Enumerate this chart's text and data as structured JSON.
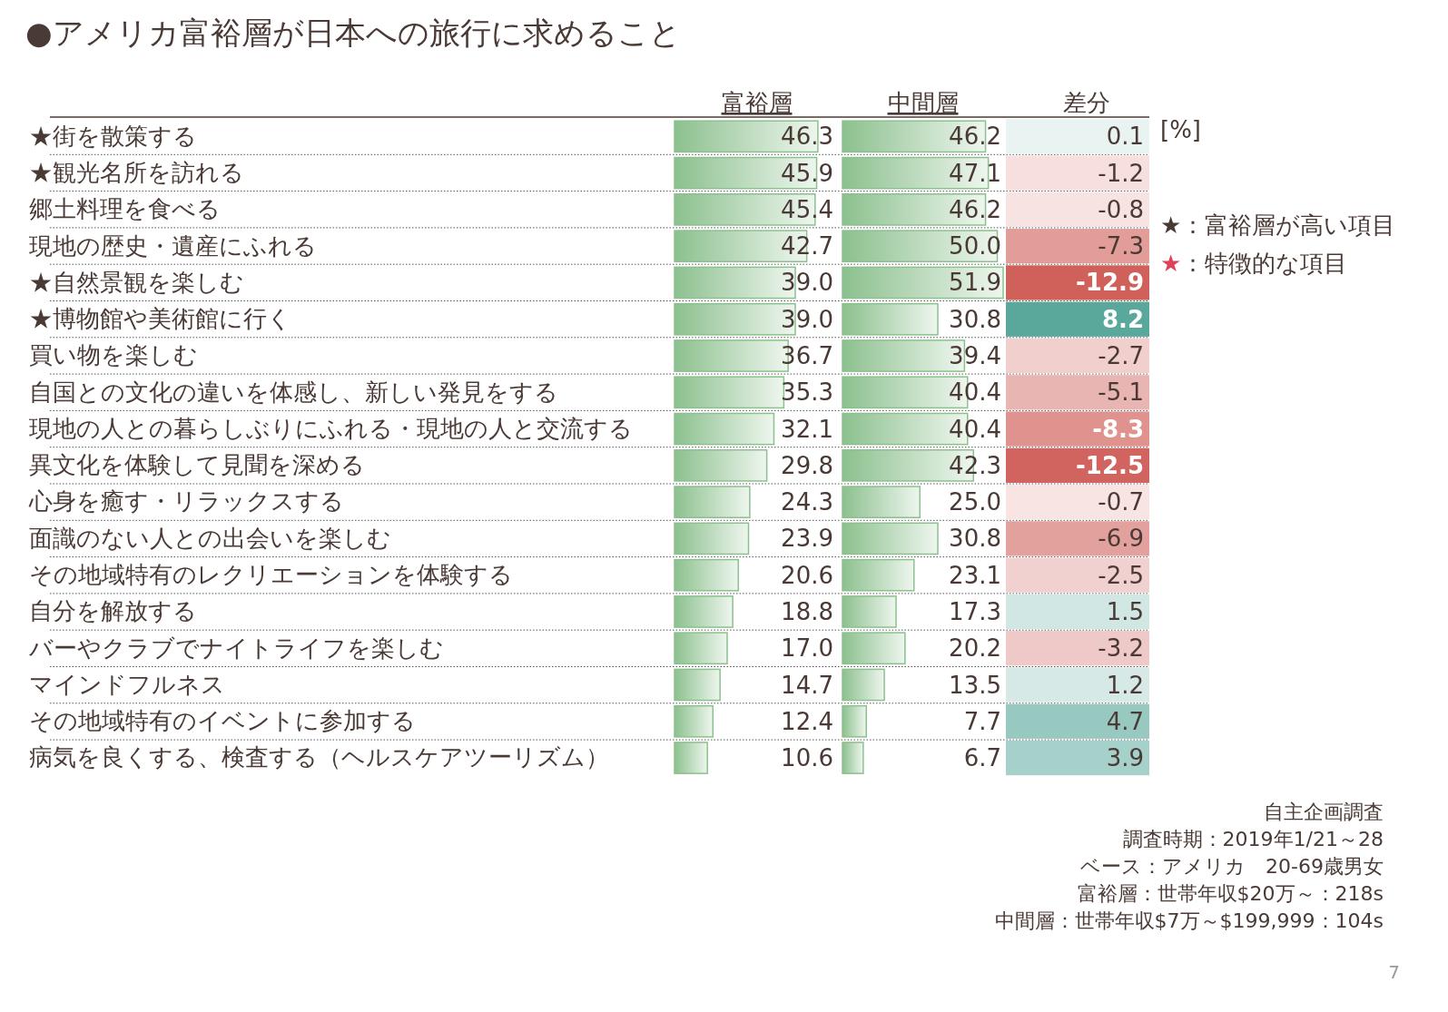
{
  "chart_data": [
    {
      "type": "bar",
      "orientation": "horizontal",
      "title": "●アメリカ富裕層が日本への旅行に求めること",
      "categories": [
        "★街を散策する",
        "★観光名所を訪れる",
        "郷土料理を食べる",
        "現地の歴史・遺産にふれる",
        "★自然景観を楽しむ",
        "★博物館や美術館に行く",
        "買い物を楽しむ",
        "自国との文化の違いを体感し、新しい発見をする",
        "現地の人との暮らしぶりにふれる・現地の人と交流する",
        "異文化を体験して見聞を深める",
        "心身を癒す・リラックスする",
        "面識のない人との出会いを楽しむ",
        "その地域特有のレクリエーションを体験する",
        "自分を解放する",
        "バーやクラブでナイトライフを楽しむ",
        "マインドフルネス",
        "その地域特有のイベントに参加する",
        "病気を良くする、検査する（ヘルスケアツーリズム）"
      ],
      "series": [
        {
          "name": "富裕層",
          "color": "#8cc08e",
          "values": [
            46.3,
            45.9,
            45.4,
            42.7,
            39.0,
            39.0,
            36.7,
            35.3,
            32.1,
            29.8,
            24.3,
            23.9,
            20.6,
            18.8,
            17.0,
            14.7,
            12.4,
            10.6
          ],
          "value_labels": [
            "46.3",
            "45.9",
            "45.4",
            "42.7",
            "39.0",
            "39.0",
            "36.7",
            "35.3",
            "32.1",
            "29.8",
            "24.3",
            "23.9",
            "20.6",
            "18.8",
            "17.0",
            "14.7",
            "12.4",
            "10.6"
          ]
        }
      ],
      "tick_labels": "y"
    },
    {
      "type": "bar",
      "orientation": "horizontal",
      "categories": [
        null,
        null,
        null,
        null,
        null,
        null,
        null,
        null,
        null,
        null,
        null,
        null,
        null,
        null,
        null,
        null,
        null,
        null
      ],
      "series": [
        {
          "name": "中間層",
          "color": "#8cc08e",
          "values": [
            46.2,
            47.1,
            46.2,
            50.0,
            51.9,
            30.8,
            39.4,
            40.4,
            40.4,
            42.3,
            25.0,
            30.8,
            23.1,
            17.3,
            20.2,
            13.5,
            7.7,
            6.7
          ],
          "value_labels": [
            "46.2",
            "47.1",
            "46.2",
            "50.0",
            "51.9",
            "30.8",
            "39.4",
            "40.4",
            "40.4",
            "42.3",
            "25.0",
            "30.8",
            "23.1",
            "17.3",
            "20.2",
            "13.5",
            "7.7",
            "6.7"
          ]
        }
      ],
      "tick_labels": false
    },
    {
      "type": "heatmap",
      "categories": [
        "差分"
      ],
      "y_categories": [
        null,
        null,
        null,
        null,
        null,
        null,
        null,
        null,
        null,
        null,
        null,
        null,
        null,
        null,
        null,
        null,
        null,
        null
      ],
      "cells": [
        [
          0.1
        ],
        [
          -1.2
        ],
        [
          -0.8
        ],
        [
          -7.3
        ],
        [
          -12.9
        ],
        [
          8.2
        ],
        [
          -2.7
        ],
        [
          -5.1
        ],
        [
          -8.3
        ],
        [
          -12.5
        ],
        [
          -0.7
        ],
        [
          -6.9
        ],
        [
          -2.5
        ],
        [
          1.5
        ],
        [
          -3.2
        ],
        [
          1.2
        ],
        [
          4.7
        ],
        [
          3.9
        ]
      ],
      "data_labels": true,
      "tick_labels": "x",
      "annotations": [
        "[%]",
        "★：富裕層が高い項目",
        "★：特徴的な項目",
        "自主企画調査",
        "調査時期：2019年1/21～28",
        "ベース：アメリカ　20-69歳男女",
        "富裕層：世帯年収$20万～：218s",
        "中間層：世帯年収$7万～$199,999：104s",
        "7"
      ]
    }
  ]
}
